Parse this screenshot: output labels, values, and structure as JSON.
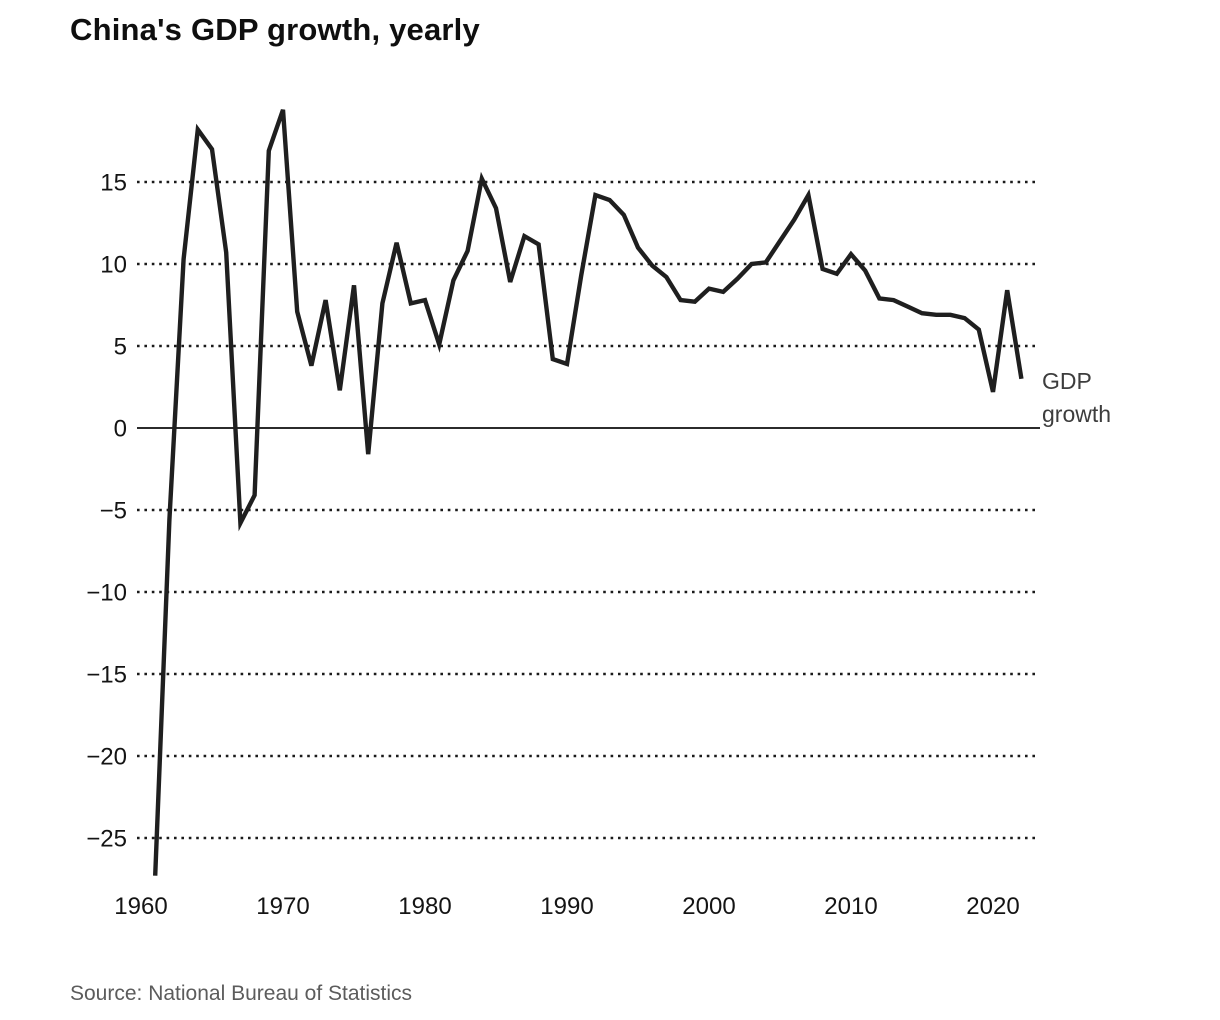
{
  "page": {
    "title": "China's GDP growth, yearly",
    "source": "Source: National Bureau of Statistics"
  },
  "chart_data": {
    "type": "line",
    "title": "China's GDP growth, yearly",
    "source": "Source: National Bureau of Statistics",
    "series": [
      {
        "name": "GDP growth",
        "x": [
          1961,
          1962,
          1963,
          1964,
          1965,
          1966,
          1967,
          1968,
          1969,
          1970,
          1971,
          1972,
          1973,
          1974,
          1975,
          1976,
          1977,
          1978,
          1979,
          1980,
          1981,
          1982,
          1983,
          1984,
          1985,
          1986,
          1987,
          1988,
          1989,
          1990,
          1991,
          1992,
          1993,
          1994,
          1995,
          1996,
          1997,
          1998,
          1999,
          2000,
          2001,
          2002,
          2003,
          2004,
          2005,
          2006,
          2007,
          2008,
          2009,
          2010,
          2011,
          2012,
          2013,
          2014,
          2015,
          2016,
          2017,
          2018,
          2019,
          2020,
          2021,
          2022
        ],
        "values": [
          -27.3,
          -5.6,
          10.3,
          18.2,
          17.0,
          10.7,
          -5.8,
          -4.1,
          16.9,
          19.4,
          7.1,
          3.8,
          7.8,
          2.3,
          8.7,
          -1.6,
          7.6,
          11.3,
          7.6,
          7.8,
          5.1,
          9.0,
          10.8,
          15.2,
          13.4,
          8.9,
          11.7,
          11.2,
          4.2,
          3.9,
          9.3,
          14.2,
          13.9,
          13.0,
          11.0,
          9.9,
          9.2,
          7.8,
          7.7,
          8.5,
          8.3,
          9.1,
          10.0,
          10.1,
          11.4,
          12.7,
          14.2,
          9.7,
          9.4,
          10.6,
          9.6,
          7.9,
          7.8,
          7.4,
          7.0,
          6.9,
          6.9,
          6.7,
          6.0,
          2.2,
          8.4,
          3.0
        ]
      }
    ],
    "series_label_lines": [
      "GDP",
      "growth"
    ],
    "xlabel": "",
    "ylabel": "",
    "xlim": [
      1960,
      2023
    ],
    "ylim": [
      -28.5,
      20.5
    ],
    "xticks": [
      {
        "value": 1960,
        "label": "1960"
      },
      {
        "value": 1970,
        "label": "1970"
      },
      {
        "value": 1980,
        "label": "1980"
      },
      {
        "value": 1990,
        "label": "1990"
      },
      {
        "value": 2000,
        "label": "2000"
      },
      {
        "value": 2010,
        "label": "2010"
      },
      {
        "value": 2020,
        "label": "2020"
      }
    ],
    "yticks": [
      {
        "value": 15,
        "label": "15"
      },
      {
        "value": 10,
        "label": "10"
      },
      {
        "value": 5,
        "label": "5"
      },
      {
        "value": 0,
        "label": "0"
      },
      {
        "value": -5,
        "label": "−5"
      },
      {
        "value": -10,
        "label": "−10"
      },
      {
        "value": -15,
        "label": "−15"
      },
      {
        "value": -20,
        "label": "−20"
      },
      {
        "value": -25,
        "label": "−25"
      }
    ],
    "grid": "horizontal-dotted",
    "zero_line": true,
    "legend_position": "right-annotation",
    "line_color": "#1f1f1f",
    "grid_color": "#1a1a1a",
    "zero_line_color": "#2b2b2b",
    "tick_text_color": "#141414",
    "annotation_color": "#3d3d3d",
    "title_color": "#0f0f0f",
    "source_color": "#5c5c5c",
    "background_color": "#ffffff"
  }
}
